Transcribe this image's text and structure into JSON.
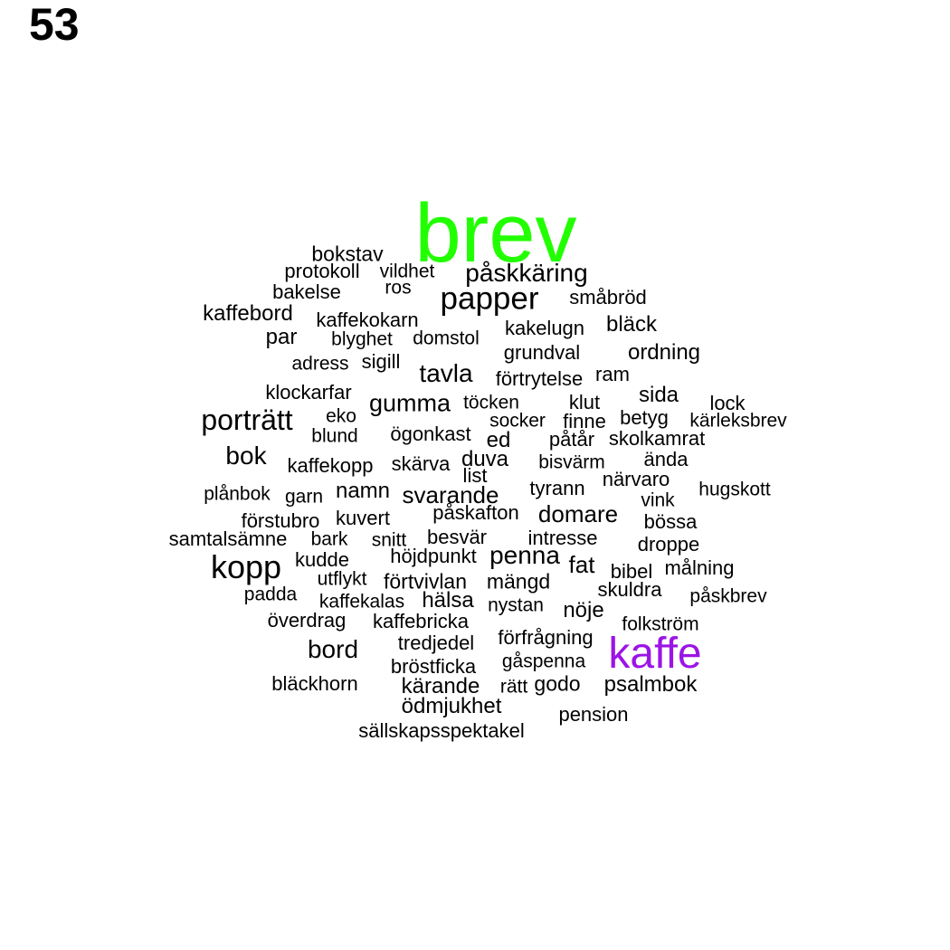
{
  "panel_number": "53",
  "colors": {
    "default": "#000000",
    "brev": "#22ff00",
    "kaffe": "#9b14e6"
  },
  "words": [
    {
      "text": "brev",
      "color": "brev"
    },
    {
      "text": "kaffe",
      "color": "kaffe"
    },
    {
      "text": "bokstav"
    },
    {
      "text": "protokoll"
    },
    {
      "text": "vildhet"
    },
    {
      "text": "påskkäring"
    },
    {
      "text": "bakelse"
    },
    {
      "text": "ros"
    },
    {
      "text": "papper"
    },
    {
      "text": "småbröd"
    },
    {
      "text": "kaffebord"
    },
    {
      "text": "kaffekokarn"
    },
    {
      "text": "kakelugn"
    },
    {
      "text": "bläck"
    },
    {
      "text": "par"
    },
    {
      "text": "blyghet"
    },
    {
      "text": "domstol"
    },
    {
      "text": "grundval"
    },
    {
      "text": "ordning"
    },
    {
      "text": "adress"
    },
    {
      "text": "sigill"
    },
    {
      "text": "tavla"
    },
    {
      "text": "förtrytelse"
    },
    {
      "text": "ram"
    },
    {
      "text": "klockarfar"
    },
    {
      "text": "gumma"
    },
    {
      "text": "töcken"
    },
    {
      "text": "klut"
    },
    {
      "text": "sida"
    },
    {
      "text": "lock"
    },
    {
      "text": "porträtt"
    },
    {
      "text": "eko"
    },
    {
      "text": "socker"
    },
    {
      "text": "finne"
    },
    {
      "text": "betyg"
    },
    {
      "text": "kärleksbrev"
    },
    {
      "text": "blund"
    },
    {
      "text": "ögonkast"
    },
    {
      "text": "ed"
    },
    {
      "text": "påtår"
    },
    {
      "text": "skolkamrat"
    },
    {
      "text": "bok"
    },
    {
      "text": "kaffekopp"
    },
    {
      "text": "skärva"
    },
    {
      "text": "duva"
    },
    {
      "text": "bisvärm"
    },
    {
      "text": "ända"
    },
    {
      "text": "list"
    },
    {
      "text": "närvaro"
    },
    {
      "text": "plånbok"
    },
    {
      "text": "garn"
    },
    {
      "text": "namn"
    },
    {
      "text": "svarande"
    },
    {
      "text": "tyrann"
    },
    {
      "text": "hugskott"
    },
    {
      "text": "vink"
    },
    {
      "text": "förstubro"
    },
    {
      "text": "kuvert"
    },
    {
      "text": "påskafton"
    },
    {
      "text": "domare"
    },
    {
      "text": "bössa"
    },
    {
      "text": "samtalsämne"
    },
    {
      "text": "bark"
    },
    {
      "text": "snitt"
    },
    {
      "text": "besvär"
    },
    {
      "text": "intresse"
    },
    {
      "text": "droppe"
    },
    {
      "text": "kopp"
    },
    {
      "text": "kudde"
    },
    {
      "text": "höjdpunkt"
    },
    {
      "text": "penna"
    },
    {
      "text": "fat"
    },
    {
      "text": "bibel"
    },
    {
      "text": "målning"
    },
    {
      "text": "utflykt"
    },
    {
      "text": "förtvivlan"
    },
    {
      "text": "mängd"
    },
    {
      "text": "padda"
    },
    {
      "text": "skuldra"
    },
    {
      "text": "kaffekalas"
    },
    {
      "text": "hälsa"
    },
    {
      "text": "nystan"
    },
    {
      "text": "nöje"
    },
    {
      "text": "påskbrev"
    },
    {
      "text": "överdrag"
    },
    {
      "text": "kaffebricka"
    },
    {
      "text": "folkström"
    },
    {
      "text": "förfrågning"
    },
    {
      "text": "bord"
    },
    {
      "text": "tredjedel"
    },
    {
      "text": "gåspenna"
    },
    {
      "text": "bröstficka"
    },
    {
      "text": "bläckhorn"
    },
    {
      "text": "kärande"
    },
    {
      "text": "rätt"
    },
    {
      "text": "godo"
    },
    {
      "text": "psalmbok"
    },
    {
      "text": "ödmjukhet"
    },
    {
      "text": "pension"
    },
    {
      "text": "sällskapsspektakel"
    }
  ]
}
